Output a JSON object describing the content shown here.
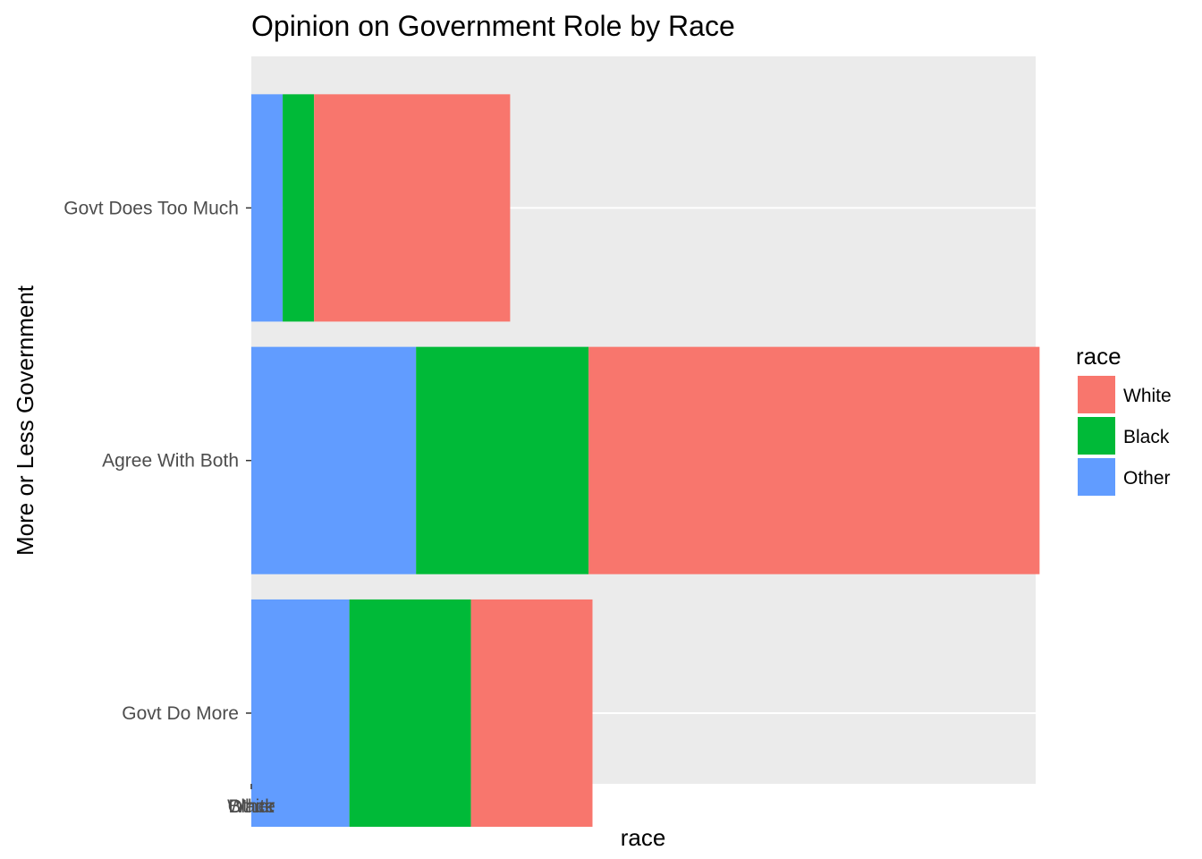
{
  "chart_data": {
    "type": "bar",
    "orientation": "horizontal",
    "stacked": true,
    "title": "Opinion on Government Role by Race",
    "xlabel": "race",
    "ylabel": "More or Less Government",
    "categories": [
      "Govt Does Too Much",
      "Agree With Both",
      "Govt Do More"
    ],
    "series": [
      {
        "name": "Other",
        "color": "#619CFF",
        "values": [
          0.04,
          0.21,
          0.125
        ]
      },
      {
        "name": "Black",
        "color": "#00BA38",
        "values": [
          0.04,
          0.22,
          0.155
        ]
      },
      {
        "name": "White",
        "color": "#F8766D",
        "values": [
          0.25,
          0.575,
          0.155
        ]
      }
    ],
    "xlim": [
      0,
      1
    ],
    "x_tick_labels": [
      "White",
      "Black",
      "Other"
    ],
    "grid": true,
    "panel_background": "#EBEBEB",
    "legend": {
      "title": "race",
      "placement": "right",
      "entries": [
        {
          "label": "White",
          "color": "#F8766D"
        },
        {
          "label": "Black",
          "color": "#00BA38"
        },
        {
          "label": "Other",
          "color": "#619CFF"
        }
      ]
    }
  }
}
